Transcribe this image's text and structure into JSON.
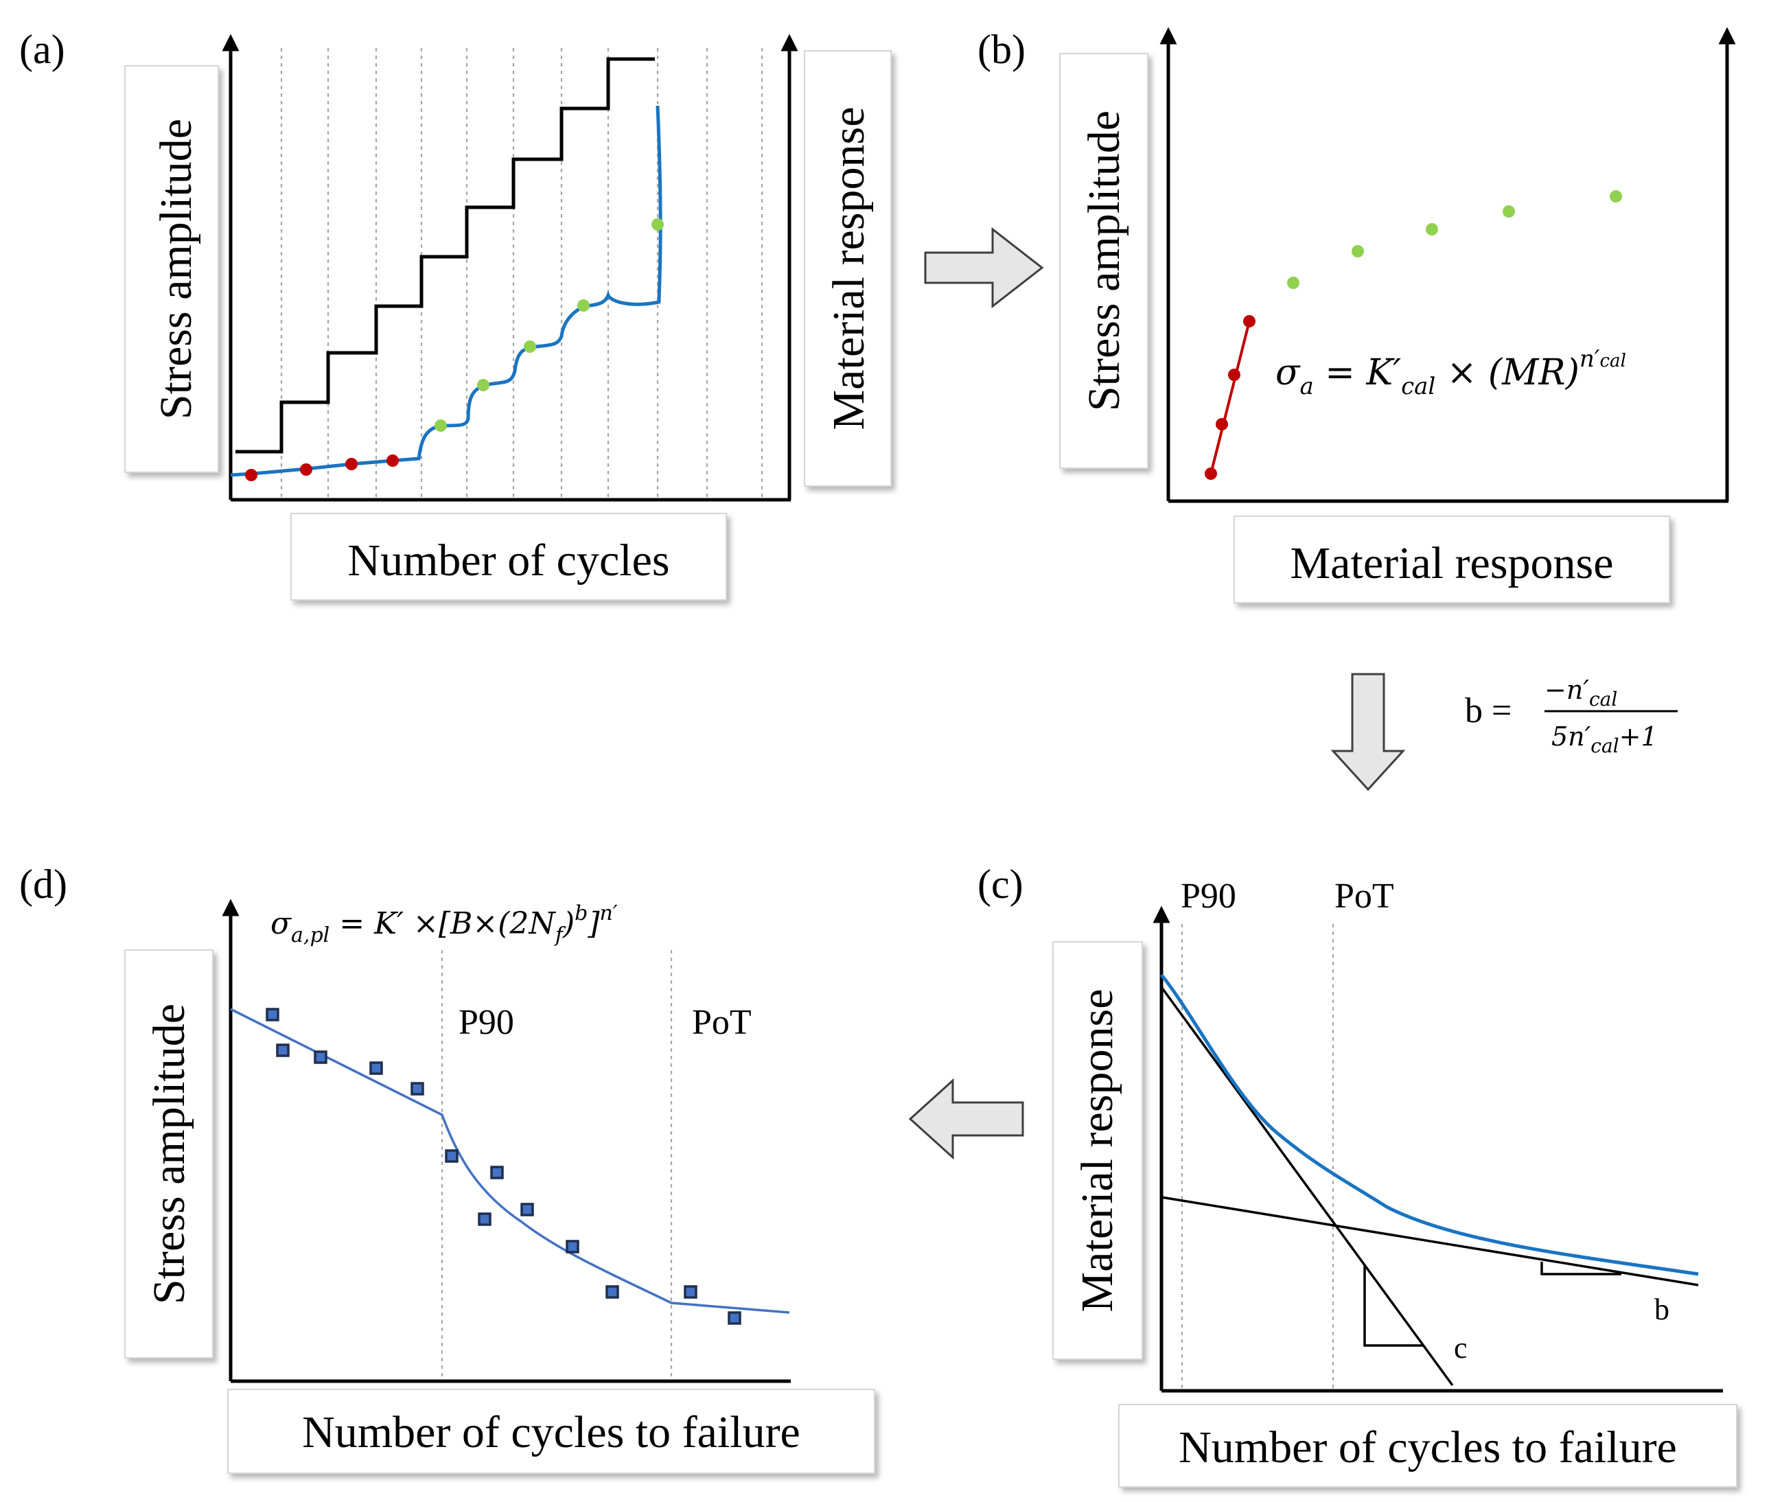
{
  "panels": {
    "a": {
      "tag": "(a)",
      "y_label": "Stress amplitude",
      "x_label": "Number of cycles",
      "y2_label": "Material response"
    },
    "b": {
      "tag": "(b)",
      "y_label": "Stress amplitude",
      "x_label": "Material response",
      "eq": {
        "sigma": "σ",
        "sub_a": "a",
        "eq_k": " = K′",
        "sub_cal": "cal",
        "times": " ×  (MR)",
        "sup_n": "n′",
        "sup_cal": "cal"
      }
    },
    "c": {
      "tag": "(c)",
      "y_label": "Material response",
      "x_label": "Number of cycles to failure",
      "p90": "P90",
      "pot": "PoT",
      "line_c": "c",
      "line_b": "b"
    },
    "d": {
      "tag": "(d)",
      "y_label": "Stress amplitude",
      "x_label": "Number of cycles to failure",
      "p90": "P90",
      "pot": "PoT",
      "eq": {
        "sigma": "σ",
        "sub": "a,pl",
        "body": " = K′ ×[B×(2N",
        "sub_f": "f",
        "close": ")",
        "sup_b": "b",
        "bracket": "]",
        "sup_n": "n′"
      }
    }
  },
  "b_formula": {
    "lhs": "b =",
    "numerator": "−n′",
    "num_sub": "cal",
    "den_5": "5n′",
    "den_sub": "cal",
    "den_plus": "+1"
  },
  "colors": {
    "blue_curve": "#1a74c2",
    "red_points": "#c00000",
    "green_points": "#92d050",
    "square_points": "#4472c4"
  }
}
